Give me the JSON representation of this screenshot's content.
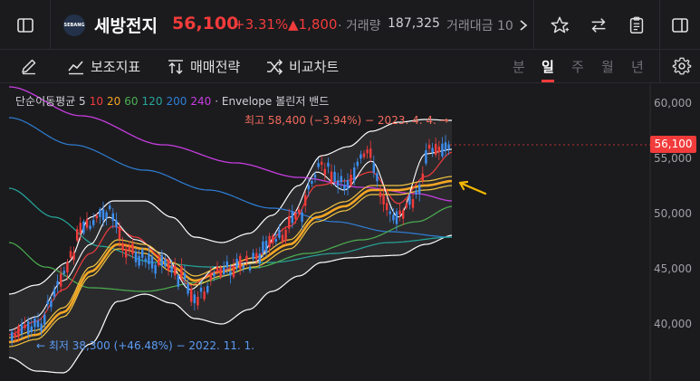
{
  "header": {
    "logo_text": "SEBANG",
    "stock_name": "세방전지",
    "price": "56,100",
    "change_pct": "+3.31%",
    "change_abs": "▲1,800",
    "volume_label": "· 거래량",
    "volume_value": "187,325",
    "amount_label": "거래대금 10"
  },
  "toolbar": {
    "indicators_label": "보조지표",
    "strategy_label": "매매전략",
    "compare_label": "비교차트",
    "periods": [
      "분",
      "일",
      "주",
      "월",
      "년"
    ],
    "active_period": "일"
  },
  "legend": {
    "ma_label": "단순이동평균 5",
    "ma_values": [
      {
        "v": "10",
        "color": "#f23b3b"
      },
      {
        "v": "20",
        "color": "#f5a623"
      },
      {
        "v": "60",
        "color": "#4caf50"
      },
      {
        "v": "120",
        "color": "#26a69a"
      },
      {
        "v": "200",
        "color": "#2f7fd6"
      },
      {
        "v": "240",
        "color": "#c83de0"
      }
    ],
    "envelope_label": "· Envelope",
    "bands_label": "볼린저 밴드"
  },
  "annotations": {
    "high": "최고 58,400 (−3.94%) − 2023. 4. 4. →",
    "low": "← 최저 38,300 (+46.48%) − 2022. 11. 1."
  },
  "yaxis": [
    "60,000",
    "55,000",
    "50,000",
    "45,000",
    "40,000"
  ],
  "current_price_tag": "56,100",
  "colors": {
    "up": "#f23b3b",
    "down": "#3d8ef0",
    "bg": "#1b1b1e",
    "ma5": "#ffffff",
    "ma10": "#f23b3b",
    "ma20": "#f5a623",
    "ma60": "#4caf50",
    "ma120": "#26a69a",
    "ma200": "#2f7fd6",
    "ma240": "#c83de0"
  }
}
